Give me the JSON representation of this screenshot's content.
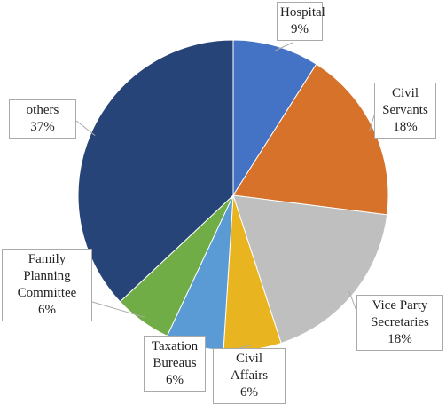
{
  "chart_data": {
    "type": "pie",
    "categories": [
      "Hospital",
      "Civil Servants",
      "Vice Party Secretaries",
      "Civil Affairs",
      "Taxation Bureaus",
      "Family Planning Committee",
      "others"
    ],
    "values": [
      9,
      18,
      18,
      6,
      6,
      6,
      37
    ],
    "value_labels": [
      "9%",
      "18%",
      "18%",
      "6%",
      "6%",
      "6%",
      "37%"
    ],
    "colors": [
      "#4472c4",
      "#d6722a",
      "#bfbfbf",
      "#e8b520",
      "#5b9bd5",
      "#70ad47",
      "#264478"
    ]
  }
}
